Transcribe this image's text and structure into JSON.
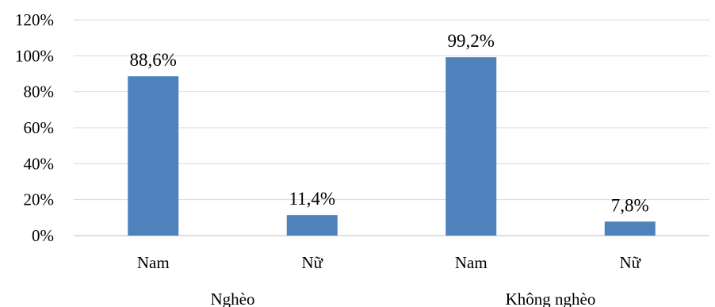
{
  "chart_data": {
    "type": "bar",
    "title": "",
    "xlabel": "",
    "ylabel": "",
    "categories": [
      "Nam",
      "Nữ",
      "Nam",
      "Nữ"
    ],
    "groups": [
      {
        "label": "Nghèo",
        "span": [
          0,
          1
        ]
      },
      {
        "label": "Không nghèo",
        "span": [
          2,
          3
        ]
      }
    ],
    "values": [
      88.6,
      11.4,
      99.2,
      7.8
    ],
    "data_labels": [
      "88,6%",
      "11,4%",
      "99,2%",
      "7,8%"
    ],
    "ylim": [
      0,
      120
    ],
    "yticks": [
      0,
      20,
      40,
      60,
      80,
      100,
      120
    ],
    "ytick_labels": [
      "0%",
      "20%",
      "40%",
      "60%",
      "80%",
      "100%",
      "120%"
    ],
    "bar_color": "#4f81bd",
    "grid": true,
    "legend": "none"
  }
}
